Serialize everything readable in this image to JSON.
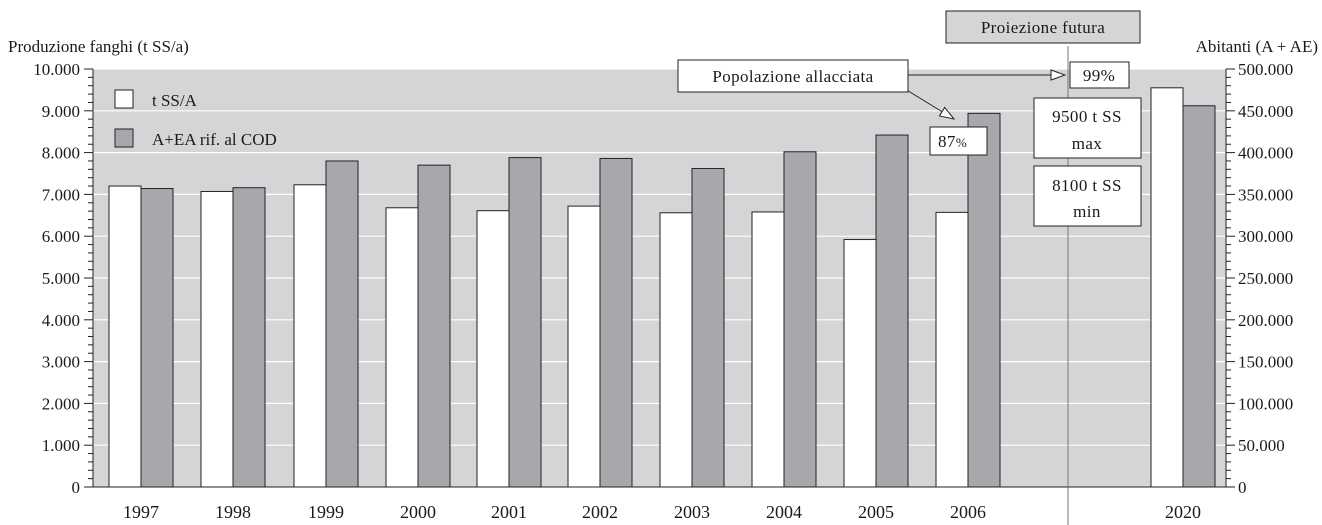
{
  "chart_data": {
    "type": "bar",
    "categories": [
      "1997",
      "1998",
      "1999",
      "2000",
      "2001",
      "2002",
      "2003",
      "2004",
      "2005",
      "2006",
      "2020"
    ],
    "series": [
      {
        "name": "t SS/A",
        "axis": "left",
        "color": "#ffffff",
        "values": [
          7200,
          7070,
          7230,
          6680,
          6610,
          6720,
          6560,
          6580,
          5920,
          6570,
          9550
        ]
      },
      {
        "name": "A+EA rif. al COD",
        "axis": "right",
        "color": "#a7a8ab",
        "values": [
          357000,
          358000,
          390000,
          385000,
          394000,
          393000,
          381000,
          401000,
          421000,
          447000,
          456000
        ]
      }
    ],
    "ylabel_left": "Produzione fanghi (t SS/a)",
    "ylabel_right": "Abitanti (A + AE)",
    "ylim_left": [
      0,
      10000
    ],
    "ylim_right": [
      0,
      500000
    ],
    "yticks_left": [
      "0",
      "1.000",
      "2.000",
      "3.000",
      "4.000",
      "5.000",
      "6.000",
      "7.000",
      "8.000",
      "9.000",
      "10.000"
    ],
    "yticks_right": [
      "0",
      "50.000",
      "100.000",
      "150.000",
      "200.000",
      "250.000",
      "300.000",
      "350.000",
      "400.000",
      "450.000",
      "500.000"
    ],
    "grid": true,
    "legend_position": "top-left",
    "plot_background": "#d4d5d7"
  },
  "annotations": {
    "projection_label": "Proiezione futura",
    "population_label": "Popolazione allacciata",
    "pct_2006": "87",
    "pct_2006_unit": "%",
    "pct_2020": "99%",
    "max_box": [
      "9500 t SS",
      "max"
    ],
    "min_box": [
      "8100 t SS",
      "min"
    ]
  }
}
